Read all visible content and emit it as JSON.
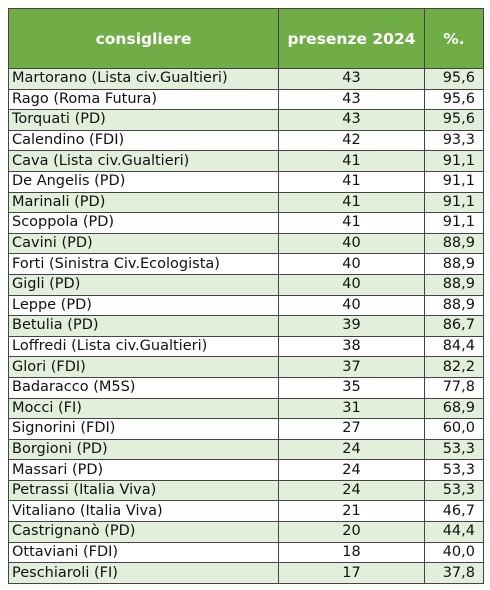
{
  "header": {
    "col_name": "consigliere",
    "col_presences": "presenze 2024",
    "col_percent": "%."
  },
  "rows": [
    {
      "name": "Martorano  (Lista civ.Gualtieri)",
      "presences": "43",
      "percent": "95,6"
    },
    {
      "name": "Rago (Roma Futura)",
      "presences": "43",
      "percent": "95,6"
    },
    {
      "name": "Torquati (PD)",
      "presences": "43",
      "percent": "95,6"
    },
    {
      "name": "Calendino (FDI)",
      "presences": "42",
      "percent": "93,3"
    },
    {
      "name": "Cava  (Lista civ.Gualtieri)",
      "presences": "41",
      "percent": "91,1"
    },
    {
      "name": "De Angelis (PD)",
      "presences": "41",
      "percent": "91,1"
    },
    {
      "name": "Marinali (PD)",
      "presences": "41",
      "percent": "91,1"
    },
    {
      "name": "Scoppola (PD)",
      "presences": "41",
      "percent": "91,1"
    },
    {
      "name": "Cavini (PD)",
      "presences": "40",
      "percent": "88,9"
    },
    {
      "name": "Forti (Sinistra Civ.Ecologista)",
      "presences": "40",
      "percent": "88,9"
    },
    {
      "name": "Gigli (PD)",
      "presences": "40",
      "percent": "88,9"
    },
    {
      "name": "Leppe (PD)",
      "presences": "40",
      "percent": "88,9"
    },
    {
      "name": "Betulia (PD)",
      "presences": "39",
      "percent": "86,7"
    },
    {
      "name": "Loffredi (Lista civ.Gualtieri)",
      "presences": "38",
      "percent": "84,4"
    },
    {
      "name": "Glori (FDI)",
      "presences": "37",
      "percent": "82,2"
    },
    {
      "name": "Badaracco (M5S)",
      "presences": "35",
      "percent": "77,8"
    },
    {
      "name": "Mocci (FI)",
      "presences": "31",
      "percent": "68,9"
    },
    {
      "name": "Signorini (FDI)",
      "presences": "27",
      "percent": "60,0"
    },
    {
      "name": "Borgioni (PD)",
      "presences": "24",
      "percent": "53,3"
    },
    {
      "name": "Massari (PD)",
      "presences": "24",
      "percent": "53,3"
    },
    {
      "name": "Petrassi (Italia Viva)",
      "presences": "24",
      "percent": "53,3"
    },
    {
      "name": "Vitaliano (Italia Viva)",
      "presences": "21",
      "percent": "46,7"
    },
    {
      "name": "Castrignanò (PD)",
      "presences": "20",
      "percent": "44,4"
    },
    {
      "name": "Ottaviani (FDI)",
      "presences": "18",
      "percent": "40,0"
    },
    {
      "name": "Peschiaroli (FI)",
      "presences": "17",
      "percent": "37,8"
    }
  ],
  "colors": {
    "header_bg": "#70ad47",
    "header_text": "#ffffff",
    "band_row": "#e2efda",
    "plain_row": "#ffffff",
    "border": "#444444"
  }
}
